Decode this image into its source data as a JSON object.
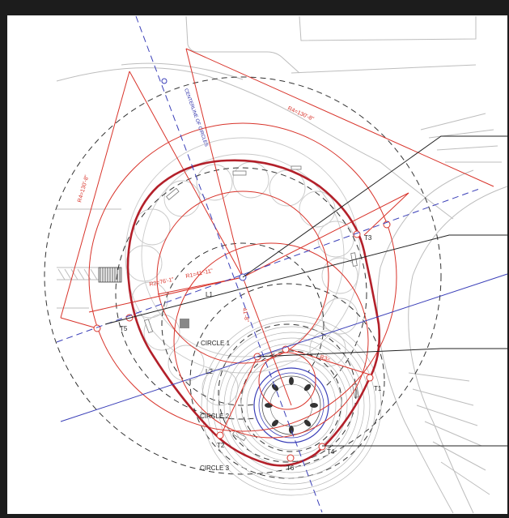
{
  "colors": {
    "frame": "#1c1c1c",
    "red": "#d8332a",
    "dark_red": "#b3202a",
    "blue": "#3a3fb8",
    "dashed_black": "#333333",
    "gray": "#a8a8a8",
    "light_gray": "#cfcfcf"
  },
  "labels": {
    "t1": "T1",
    "t2": "T2",
    "t3": "T3",
    "t4": "T4",
    "t5": "T5",
    "t6": "T6",
    "l1": "L1",
    "l2": "L2",
    "circle1": "CIRCLE 1",
    "circle2": "CIRCLE 2",
    "circle3": "CIRCLE 3"
  },
  "dimensions": {
    "r1": "R1=41'-11\"",
    "r2": "R2=76'-1\"",
    "r3": "R3=",
    "r4_top": "R4=130'-8\"",
    "r4_left": "R4=130'-8\"",
    "axis_mid": "41'-8\"",
    "axis_blue": "CENTERLINE OF CIRCLES"
  }
}
